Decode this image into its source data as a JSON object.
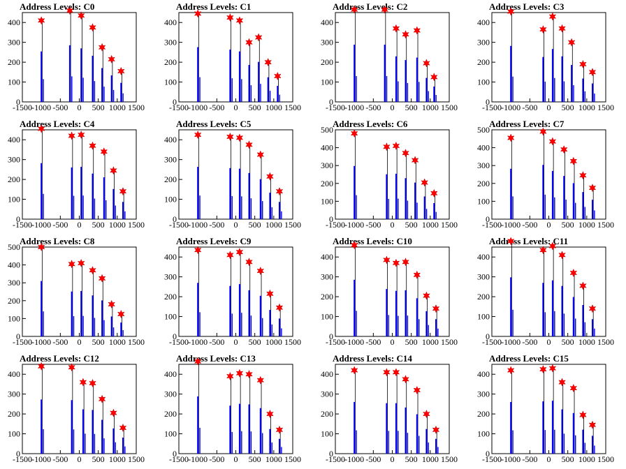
{
  "layout": {
    "cols": 4
  },
  "colors": {
    "bars": "#0000ff",
    "raw": "#000000",
    "markers": "#ff0000",
    "frame": "#000000"
  },
  "chart_data": [
    {
      "type": "bar",
      "title": "Address Levels: C0",
      "xlim": [
        -1500,
        1500
      ],
      "ylim": [
        0,
        450
      ],
      "x_ticks": [
        -1500,
        -1000,
        -500,
        0,
        500,
        1000,
        1500
      ],
      "y_ticks": [
        0,
        100,
        200,
        300,
        400
      ],
      "levels": [
        {
          "x": -1000,
          "peak": 410
        },
        {
          "x": -250,
          "peak": 460
        },
        {
          "x": 50,
          "peak": 435
        },
        {
          "x": 350,
          "peak": 375
        },
        {
          "x": 600,
          "peak": 275
        },
        {
          "x": 850,
          "peak": 215
        },
        {
          "x": 1100,
          "peak": 155
        }
      ]
    },
    {
      "type": "bar",
      "title": "Address Levels: C1",
      "xlim": [
        -1500,
        1500
      ],
      "ylim": [
        0,
        450
      ],
      "x_ticks": [
        -1500,
        -1000,
        -500,
        0,
        500,
        1000,
        1500
      ],
      "y_ticks": [
        0,
        100,
        200,
        300,
        400
      ],
      "levels": [
        {
          "x": -1000,
          "peak": 445
        },
        {
          "x": -150,
          "peak": 425
        },
        {
          "x": 100,
          "peak": 410
        },
        {
          "x": 350,
          "peak": 300
        },
        {
          "x": 600,
          "peak": 325
        },
        {
          "x": 850,
          "peak": 200
        },
        {
          "x": 1100,
          "peak": 130
        }
      ]
    },
    {
      "type": "bar",
      "title": "Address Levels: C2",
      "xlim": [
        -1500,
        1500
      ],
      "ylim": [
        0,
        450
      ],
      "x_ticks": [
        -1500,
        -1000,
        -500,
        0,
        500,
        1000,
        1500
      ],
      "y_ticks": [
        0,
        100,
        200,
        300,
        400
      ],
      "levels": [
        {
          "x": -1000,
          "peak": 465
        },
        {
          "x": -200,
          "peak": 465
        },
        {
          "x": 100,
          "peak": 370
        },
        {
          "x": 350,
          "peak": 340
        },
        {
          "x": 650,
          "peak": 360
        },
        {
          "x": 900,
          "peak": 195
        },
        {
          "x": 1100,
          "peak": 125
        }
      ]
    },
    {
      "type": "bar",
      "title": "Address Levels: C3",
      "xlim": [
        -1500,
        1500
      ],
      "ylim": [
        0,
        450
      ],
      "x_ticks": [
        -1500,
        -1000,
        -500,
        0,
        500,
        1000,
        1500
      ],
      "y_ticks": [
        0,
        100,
        200,
        300,
        400
      ],
      "levels": [
        {
          "x": -1000,
          "peak": 455
        },
        {
          "x": -150,
          "peak": 365
        },
        {
          "x": 100,
          "peak": 430
        },
        {
          "x": 350,
          "peak": 370
        },
        {
          "x": 600,
          "peak": 300
        },
        {
          "x": 900,
          "peak": 190
        },
        {
          "x": 1150,
          "peak": 150
        }
      ]
    },
    {
      "type": "bar",
      "title": "Address Levels: C4",
      "xlim": [
        -1500,
        1500
      ],
      "ylim": [
        0,
        450
      ],
      "x_ticks": [
        -1500,
        -1000,
        -500,
        0,
        500,
        1000,
        1500
      ],
      "y_ticks": [
        0,
        100,
        200,
        300,
        400
      ],
      "levels": [
        {
          "x": -1000,
          "peak": 455
        },
        {
          "x": -200,
          "peak": 420
        },
        {
          "x": 50,
          "peak": 425
        },
        {
          "x": 350,
          "peak": 370
        },
        {
          "x": 650,
          "peak": 340
        },
        {
          "x": 900,
          "peak": 245
        },
        {
          "x": 1150,
          "peak": 140
        }
      ]
    },
    {
      "type": "bar",
      "title": "Address Levels: C5",
      "xlim": [
        -1500,
        1500
      ],
      "ylim": [
        0,
        450
      ],
      "x_ticks": [
        -1500,
        -1000,
        -500,
        0,
        500,
        1000,
        1500
      ],
      "y_ticks": [
        0,
        100,
        200,
        300,
        400
      ],
      "levels": [
        {
          "x": -1000,
          "peak": 425
        },
        {
          "x": -150,
          "peak": 415
        },
        {
          "x": 100,
          "peak": 410
        },
        {
          "x": 350,
          "peak": 375
        },
        {
          "x": 650,
          "peak": 325
        },
        {
          "x": 900,
          "peak": 215
        },
        {
          "x": 1150,
          "peak": 140
        }
      ]
    },
    {
      "type": "bar",
      "title": "Address Levels: C6",
      "xlim": [
        -1500,
        1500
      ],
      "ylim": [
        0,
        500
      ],
      "x_ticks": [
        -1500,
        -1000,
        -500,
        0,
        500,
        1000,
        1500
      ],
      "y_ticks": [
        0,
        100,
        200,
        300,
        400,
        500
      ],
      "levels": [
        {
          "x": -1000,
          "peak": 480
        },
        {
          "x": -150,
          "peak": 405
        },
        {
          "x": 100,
          "peak": 410
        },
        {
          "x": 350,
          "peak": 370
        },
        {
          "x": 600,
          "peak": 330
        },
        {
          "x": 850,
          "peak": 205
        },
        {
          "x": 1100,
          "peak": 145
        }
      ]
    },
    {
      "type": "bar",
      "title": "Address Levels: C7",
      "xlim": [
        -1500,
        1500
      ],
      "ylim": [
        0,
        500
      ],
      "x_ticks": [
        -1500,
        -1000,
        -500,
        0,
        500,
        1000,
        1500
      ],
      "y_ticks": [
        0,
        100,
        200,
        300,
        400,
        500
      ],
      "levels": [
        {
          "x": -1000,
          "peak": 455
        },
        {
          "x": -150,
          "peak": 490
        },
        {
          "x": 100,
          "peak": 435
        },
        {
          "x": 400,
          "peak": 390
        },
        {
          "x": 650,
          "peak": 325
        },
        {
          "x": 900,
          "peak": 245
        },
        {
          "x": 1150,
          "peak": 175
        }
      ]
    },
    {
      "type": "bar",
      "title": "Address Levels: C8",
      "xlim": [
        -1500,
        1500
      ],
      "ylim": [
        0,
        500
      ],
      "x_ticks": [
        -1500,
        -1000,
        -500,
        0,
        500,
        1000,
        1500
      ],
      "y_ticks": [
        0,
        100,
        200,
        300,
        400,
        500
      ],
      "levels": [
        {
          "x": -1000,
          "peak": 500
        },
        {
          "x": -200,
          "peak": 405
        },
        {
          "x": 50,
          "peak": 410
        },
        {
          "x": 350,
          "peak": 370
        },
        {
          "x": 600,
          "peak": 325
        },
        {
          "x": 850,
          "peak": 180
        },
        {
          "x": 1100,
          "peak": 125
        }
      ]
    },
    {
      "type": "bar",
      "title": "Address Levels: C9",
      "xlim": [
        -1500,
        1500
      ],
      "ylim": [
        0,
        450
      ],
      "x_ticks": [
        -1500,
        -1000,
        -500,
        0,
        500,
        1000,
        1500
      ],
      "y_ticks": [
        0,
        100,
        200,
        300,
        400
      ],
      "levels": [
        {
          "x": -1000,
          "peak": 435
        },
        {
          "x": -150,
          "peak": 410
        },
        {
          "x": 100,
          "peak": 425
        },
        {
          "x": 350,
          "peak": 375
        },
        {
          "x": 650,
          "peak": 330
        },
        {
          "x": 900,
          "peak": 215
        },
        {
          "x": 1150,
          "peak": 145
        }
      ]
    },
    {
      "type": "bar",
      "title": "Address Levels: C10",
      "xlim": [
        -1500,
        1500
      ],
      "ylim": [
        0,
        450
      ],
      "x_ticks": [
        -1500,
        -1000,
        -500,
        0,
        500,
        1000,
        1500
      ],
      "y_ticks": [
        0,
        100,
        200,
        300,
        400
      ],
      "levels": [
        {
          "x": -1000,
          "peak": 460
        },
        {
          "x": -150,
          "peak": 385
        },
        {
          "x": 100,
          "peak": 370
        },
        {
          "x": 350,
          "peak": 375
        },
        {
          "x": 650,
          "peak": 310
        },
        {
          "x": 900,
          "peak": 205
        },
        {
          "x": 1150,
          "peak": 140
        }
      ]
    },
    {
      "type": "bar",
      "title": "Address Levels: C11",
      "xlim": [
        -1500,
        1500
      ],
      "ylim": [
        0,
        450
      ],
      "x_ticks": [
        -1500,
        -1000,
        -500,
        0,
        500,
        1000,
        1500
      ],
      "y_ticks": [
        0,
        100,
        200,
        300,
        400
      ],
      "levels": [
        {
          "x": -1000,
          "peak": 480
        },
        {
          "x": -150,
          "peak": 435
        },
        {
          "x": 100,
          "peak": 455
        },
        {
          "x": 350,
          "peak": 410
        },
        {
          "x": 650,
          "peak": 320
        },
        {
          "x": 900,
          "peak": 255
        },
        {
          "x": 1150,
          "peak": 140
        }
      ]
    },
    {
      "type": "bar",
      "title": "Address Levels: C12",
      "xlim": [
        -1500,
        1500
      ],
      "ylim": [
        0,
        450
      ],
      "x_ticks": [
        -1500,
        -1000,
        -500,
        0,
        500,
        1000,
        1500
      ],
      "y_ticks": [
        0,
        100,
        200,
        300,
        400
      ],
      "levels": [
        {
          "x": -1000,
          "peak": 440
        },
        {
          "x": -200,
          "peak": 435
        },
        {
          "x": 100,
          "peak": 360
        },
        {
          "x": 350,
          "peak": 355
        },
        {
          "x": 600,
          "peak": 275
        },
        {
          "x": 900,
          "peak": 205
        },
        {
          "x": 1150,
          "peak": 130
        }
      ]
    },
    {
      "type": "bar",
      "title": "Address Levels: C13",
      "xlim": [
        -1500,
        1500
      ],
      "ylim": [
        0,
        450
      ],
      "x_ticks": [
        -1500,
        -1000,
        -500,
        0,
        500,
        1000,
        1500
      ],
      "y_ticks": [
        0,
        100,
        200,
        300,
        400
      ],
      "levels": [
        {
          "x": -1000,
          "peak": 465
        },
        {
          "x": -150,
          "peak": 390
        },
        {
          "x": 100,
          "peak": 405
        },
        {
          "x": 350,
          "peak": 400
        },
        {
          "x": 650,
          "peak": 370
        },
        {
          "x": 900,
          "peak": 200
        },
        {
          "x": 1150,
          "peak": 120
        }
      ]
    },
    {
      "type": "bar",
      "title": "Address Levels: C14",
      "xlim": [
        -1500,
        1500
      ],
      "ylim": [
        0,
        450
      ],
      "x_ticks": [
        -1500,
        -1000,
        -500,
        0,
        500,
        1000,
        1500
      ],
      "y_ticks": [
        0,
        100,
        200,
        300,
        400
      ],
      "levels": [
        {
          "x": -1000,
          "peak": 420
        },
        {
          "x": -150,
          "peak": 410
        },
        {
          "x": 100,
          "peak": 410
        },
        {
          "x": 350,
          "peak": 375
        },
        {
          "x": 650,
          "peak": 320
        },
        {
          "x": 900,
          "peak": 200
        },
        {
          "x": 1150,
          "peak": 120
        }
      ]
    },
    {
      "type": "bar",
      "title": "Address Levels: C15",
      "xlim": [
        -1500,
        1500
      ],
      "ylim": [
        0,
        450
      ],
      "x_ticks": [
        -1500,
        -1000,
        -500,
        0,
        500,
        1000,
        1500
      ],
      "y_ticks": [
        0,
        100,
        200,
        300,
        400
      ],
      "levels": [
        {
          "x": -1000,
          "peak": 420
        },
        {
          "x": -150,
          "peak": 425
        },
        {
          "x": 100,
          "peak": 430
        },
        {
          "x": 350,
          "peak": 360
        },
        {
          "x": 650,
          "peak": 330
        },
        {
          "x": 900,
          "peak": 195
        },
        {
          "x": 1150,
          "peak": 145
        }
      ]
    }
  ]
}
